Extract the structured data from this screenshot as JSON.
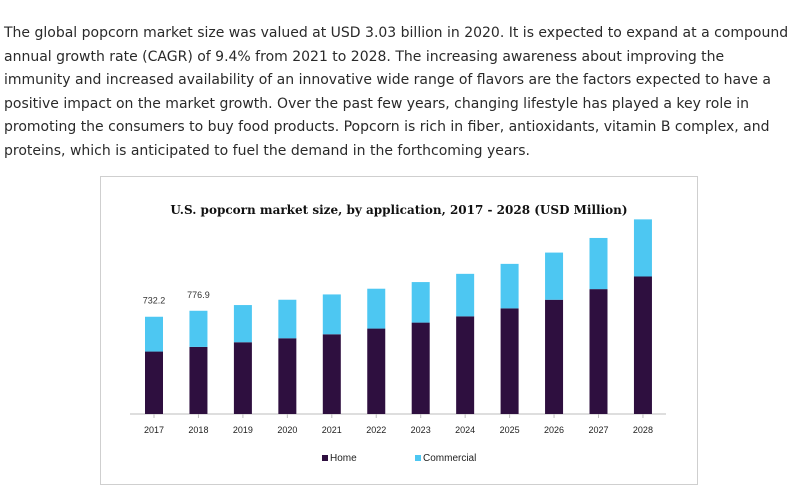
{
  "article": {
    "paragraph": "The global popcorn market size was valued at USD 3.03 billion in 2020. It is expected to expand at a compound annual growth rate (CAGR) of 9.4% from 2021 to 2028. The increasing awareness about improving the immunity and increased availability of an innovative wide range of flavors are the factors expected to have a positive impact on the market growth. Over the past few years, changing lifestyle has played a key role in promoting the consumers to buy food products. Popcorn is rich in fiber, antioxidants, vitamin B complex, and proteins, which is anticipated to fuel the demand in the forthcoming years."
  },
  "chart_data": {
    "type": "bar",
    "stacked": true,
    "title": "U.S. popcorn market size, by application, 2017 - 2028 (USD Million)",
    "xlabel": "",
    "ylabel": "",
    "ylim": [
      0,
      1400
    ],
    "categories": [
      "2017",
      "2018",
      "2019",
      "2020",
      "2021",
      "2022",
      "2023",
      "2024",
      "2025",
      "2026",
      "2027",
      "2028"
    ],
    "series": [
      {
        "name": "Home",
        "color": "#2e0f3f",
        "values": [
          470,
          505,
          540,
          570,
          600,
          643,
          688,
          735,
          795,
          860,
          940,
          1035
        ]
      },
      {
        "name": "Commercial",
        "color": "#4dc7f2",
        "values": [
          262,
          272,
          280,
          290,
          300,
          300,
          305,
          320,
          335,
          355,
          385,
          430
        ]
      }
    ],
    "data_labels": [
      {
        "category": "2017",
        "text": "732.2"
      },
      {
        "category": "2018",
        "text": "776.9"
      }
    ],
    "legend": {
      "position": "bottom",
      "items": [
        "Home",
        "Commercial"
      ]
    }
  }
}
